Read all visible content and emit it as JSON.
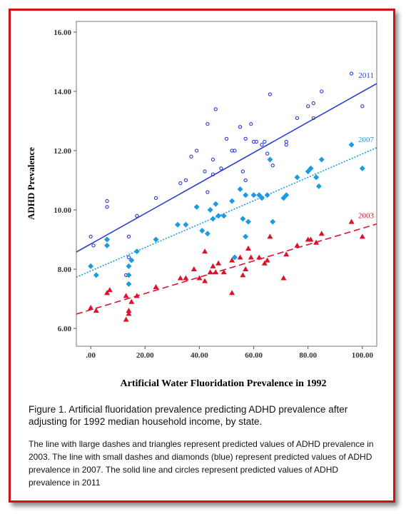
{
  "chart_data": {
    "type": "scatter",
    "x_label": "Artificial Water Fluoridation Prevalence in 1992",
    "y_label": "ADHD Prevalence",
    "xlim": [
      -5.3,
      105.3
    ],
    "ylim": [
      5.4,
      16.36
    ],
    "xticks": [
      {
        "value": 0,
        "label": ".00"
      },
      {
        "value": 20,
        "label": "20.00"
      },
      {
        "value": 40,
        "label": "40.00"
      },
      {
        "value": 60,
        "label": "60.00"
      },
      {
        "value": 80,
        "label": "80.00"
      },
      {
        "value": 100,
        "label": "100.00"
      }
    ],
    "yticks": [
      {
        "value": 6,
        "label": "6.00"
      },
      {
        "value": 8,
        "label": "8.00"
      },
      {
        "value": 10,
        "label": "10.00"
      },
      {
        "value": 12,
        "label": "12.00"
      },
      {
        "value": 14,
        "label": "14.00"
      },
      {
        "value": 16,
        "label": "16.00"
      }
    ],
    "series": [
      {
        "name": "2011",
        "color": "#2a3ccc",
        "marker": "circle",
        "dash": "solid",
        "trend": {
          "intercept": 8.85,
          "slope": 0.0514
        },
        "x": [
          0,
          1,
          6,
          6,
          13,
          14,
          14,
          17,
          24,
          33,
          35,
          37,
          39,
          42,
          43,
          43,
          45,
          45,
          46,
          48,
          50,
          52,
          53,
          55,
          56,
          57,
          57,
          59,
          60,
          61,
          63,
          64,
          65,
          66,
          67,
          72,
          72,
          76,
          80,
          82,
          82,
          85,
          96,
          100
        ],
        "values": [
          9.1,
          8.8,
          10.3,
          10.1,
          7.8,
          8.4,
          9.1,
          9.8,
          10.4,
          10.9,
          11.0,
          11.8,
          12.0,
          11.3,
          12.9,
          10.6,
          11.7,
          11.2,
          13.4,
          11.4,
          12.4,
          12.0,
          12.0,
          12.8,
          11.3,
          12.4,
          11.0,
          12.9,
          12.3,
          12.3,
          12.2,
          12.3,
          11.9,
          13.9,
          11.5,
          12.2,
          12.3,
          13.1,
          13.5,
          13.1,
          13.6,
          14.0,
          14.6,
          13.5
        ]
      },
      {
        "name": "2007",
        "color": "#1c9be0",
        "marker": "diamond",
        "dash": "small",
        "trend": {
          "intercept": 7.94,
          "slope": 0.0395
        },
        "x": [
          0,
          2,
          6,
          6,
          14,
          14,
          14,
          15,
          17,
          24,
          32,
          35,
          39,
          41,
          43,
          44,
          45,
          46,
          47,
          49,
          52,
          53,
          55,
          56,
          57,
          57,
          58,
          60,
          62,
          63,
          65,
          66,
          67,
          71,
          72,
          76,
          80,
          81,
          83,
          84,
          85,
          96,
          100
        ],
        "values": [
          8.1,
          7.8,
          8.8,
          9.0,
          7.5,
          7.8,
          8.1,
          8.3,
          8.6,
          9.0,
          9.5,
          9.5,
          10.1,
          9.3,
          9.2,
          10.0,
          9.7,
          10.2,
          9.8,
          9.8,
          10.3,
          8.4,
          10.7,
          9.7,
          10.5,
          9.1,
          9.6,
          10.5,
          10.5,
          10.4,
          10.5,
          11.7,
          9.6,
          10.4,
          10.5,
          11.1,
          11.3,
          11.4,
          11.1,
          10.8,
          11.7,
          12.2,
          11.4
        ]
      },
      {
        "name": "2003",
        "color": "#e0102a",
        "marker": "triangle",
        "dash": "large",
        "trend": {
          "intercept": 6.63,
          "slope": 0.0275
        },
        "x": [
          0,
          2,
          6,
          7,
          13,
          13,
          14,
          14,
          15,
          17,
          24,
          33,
          35,
          38,
          40,
          42,
          42,
          44,
          45,
          46,
          47,
          49,
          52,
          52,
          55,
          56,
          57,
          58,
          59,
          62,
          64,
          65,
          66,
          71,
          72,
          76,
          80,
          81,
          83,
          85,
          96,
          100
        ],
        "values": [
          6.7,
          6.6,
          7.2,
          7.3,
          6.3,
          7.1,
          6.5,
          6.6,
          6.9,
          7.1,
          7.4,
          7.7,
          7.7,
          8.0,
          7.7,
          8.6,
          7.6,
          7.9,
          8.1,
          7.9,
          8.2,
          7.9,
          8.3,
          7.2,
          8.4,
          7.8,
          8.0,
          8.7,
          8.4,
          8.4,
          8.2,
          8.3,
          9.1,
          7.7,
          8.5,
          8.8,
          9.0,
          9.0,
          8.9,
          9.2,
          9.6,
          9.1
        ]
      }
    ]
  },
  "figure": {
    "caption": "Figure 1.  Artificial fluoridation prevalence predicting ADHD prevalence after adjusting for 1992 median household income, by state.",
    "note": "The line with llarge dashes and triangles represent predicted values of ADHD prevalence in 2003.  The line with small dashes and diamonds (blue) represent predicted values of ADHD prevalence in 2007.  The solid line and circles represent predicted values of ADHD prevalence in 2011"
  }
}
